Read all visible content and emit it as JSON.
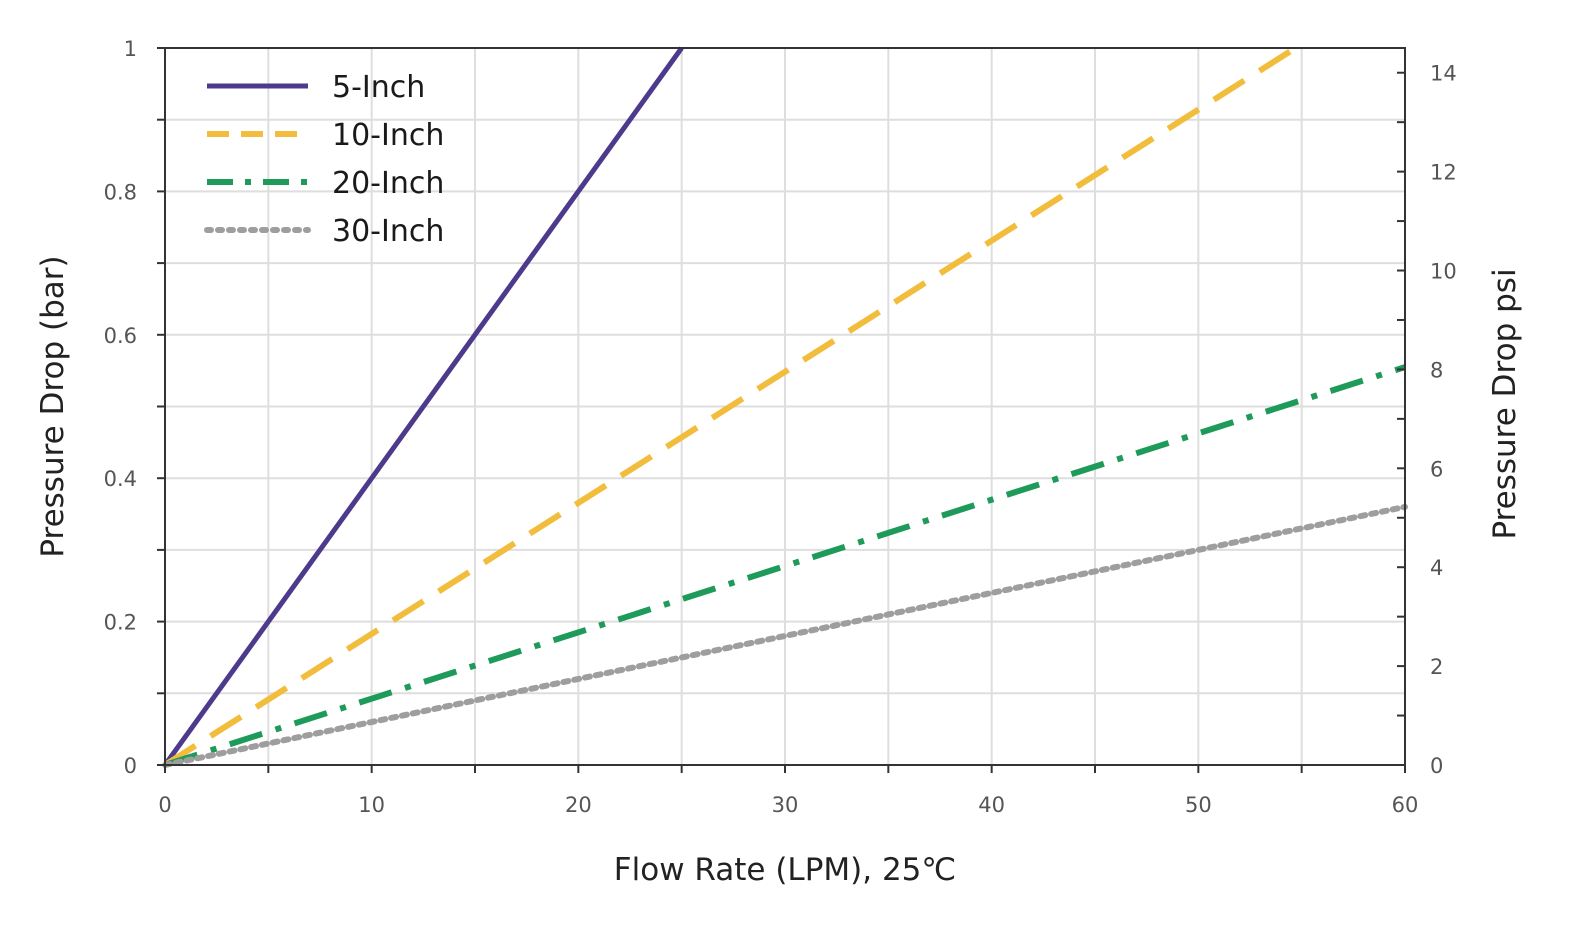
{
  "chart_data": {
    "type": "line",
    "xlabel": "Flow Rate (LPM), 25℃",
    "ylabel": "Pressure Drop (bar)",
    "ylabel_right": "Pressure Drop psi",
    "xlim": [
      0,
      60
    ],
    "ylim": [
      0,
      1
    ],
    "ylim_right": [
      0,
      14.5
    ],
    "x_ticks": [
      "0",
      "10",
      "20",
      "30",
      "40",
      "50",
      "60"
    ],
    "y_ticks": [
      "0",
      "0.2",
      "0.4",
      "0.6",
      "0.8",
      "1"
    ],
    "y_right_ticks": [
      "0",
      "2",
      "4",
      "6",
      "8",
      "10",
      "12",
      "14"
    ],
    "grid": true,
    "legend_position": "top-left",
    "series": [
      {
        "name": "5-Inch",
        "style": "solid",
        "color": "#4e3a8c",
        "x": [
          0,
          25
        ],
        "y": [
          0,
          1.0
        ]
      },
      {
        "name": "10-Inch",
        "style": "dashed",
        "color": "#f2bd3c",
        "x": [
          0,
          54.7
        ],
        "y": [
          0,
          1.0
        ]
      },
      {
        "name": "20-Inch",
        "style": "dash-dot",
        "color": "#1e9a5a",
        "x": [
          0,
          60
        ],
        "y": [
          0,
          0.555
        ]
      },
      {
        "name": "30-Inch",
        "style": "dotted",
        "color": "#9e9e9e",
        "x": [
          0,
          60
        ],
        "y": [
          0,
          0.36
        ]
      }
    ]
  }
}
